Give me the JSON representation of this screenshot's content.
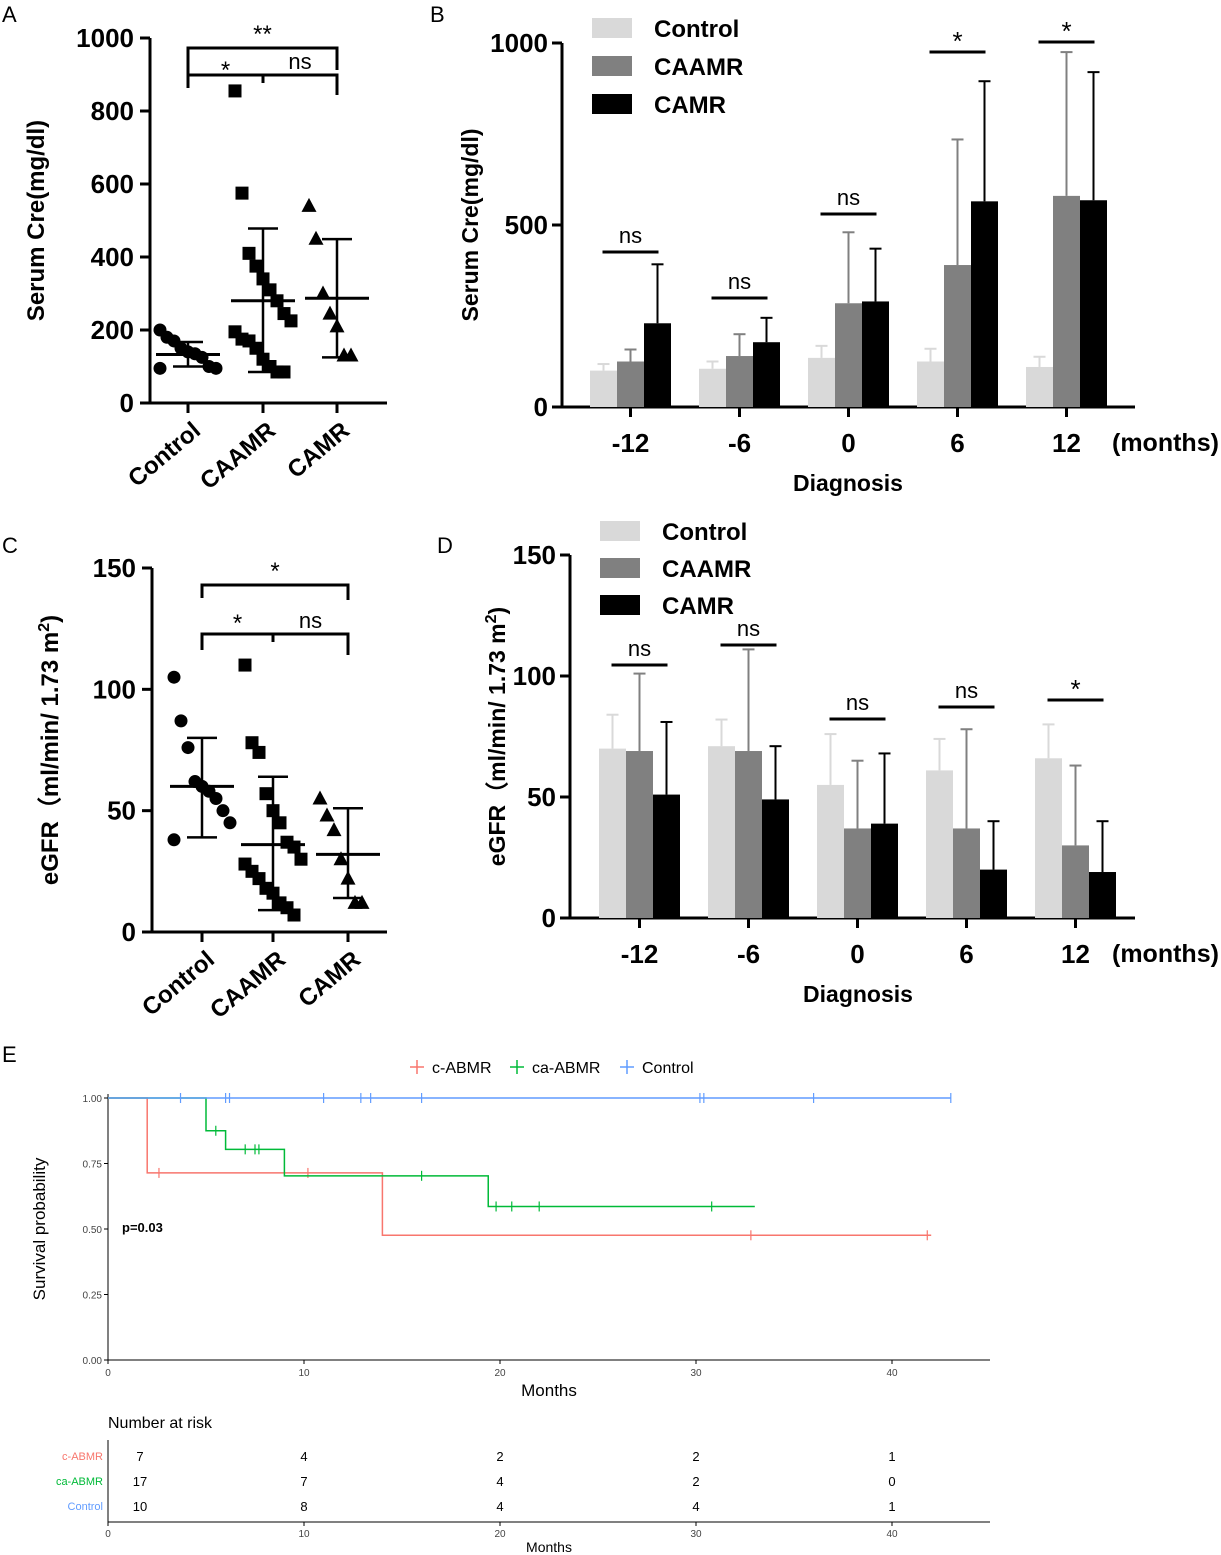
{
  "chart_data": [
    {
      "panel": "A",
      "type": "scatter",
      "title": "",
      "ylabel": "Serum Cre(mg/dl)",
      "ylim": [
        0,
        1000
      ],
      "yticks": [
        "0",
        "200",
        "400",
        "600",
        "800",
        "1000"
      ],
      "categories": [
        "Control",
        "CAAMR",
        "CAMR"
      ],
      "groups": [
        {
          "name": "Control",
          "marker": "circle",
          "points": [
            200,
            180,
            170,
            150,
            140,
            135,
            125,
            100,
            95,
            95
          ],
          "mean": 133,
          "sd": [
            100,
            167
          ]
        },
        {
          "name": "CAAMR",
          "marker": "square",
          "points": [
            855,
            575,
            410,
            375,
            340,
            310,
            280,
            245,
            225,
            195,
            175,
            170,
            150,
            120,
            100,
            85,
            85
          ],
          "mean": 280,
          "sd": [
            85,
            478
          ]
        },
        {
          "name": "CAMR",
          "marker": "triangle",
          "points": [
            540,
            450,
            300,
            245,
            210,
            130,
            130
          ],
          "mean": 287,
          "sd": [
            125,
            449
          ]
        }
      ],
      "significance": [
        {
          "label": "**",
          "between": [
            "Control",
            "CAMR"
          ]
        },
        {
          "label": "*",
          "between": [
            "Control",
            "CAAMR"
          ]
        },
        {
          "label": "ns",
          "between": [
            "CAAMR",
            "CAMR"
          ]
        }
      ]
    },
    {
      "panel": "B",
      "type": "bar",
      "ylabel": "Serum Cre(mg/dl)",
      "xlabel": "Diagnosis",
      "x_unit": "(months)",
      "ylim": [
        0,
        1000
      ],
      "yticks": [
        "0",
        "500",
        "1000"
      ],
      "categories": [
        "-12",
        "-6",
        "0",
        "6",
        "12"
      ],
      "series": [
        {
          "name": "Control",
          "color": "#d9d9d9",
          "values": [
            100,
            105,
            135,
            125,
            110
          ],
          "err": [
            118,
            125,
            168,
            160,
            138
          ]
        },
        {
          "name": "CAAMR",
          "color": "#808080",
          "values": [
            125,
            140,
            285,
            390,
            580
          ],
          "err": [
            158,
            200,
            480,
            735,
            975
          ]
        },
        {
          "name": "CAMR",
          "color": "#000000",
          "values": [
            230,
            178,
            290,
            565,
            568
          ],
          "err": [
            392,
            245,
            435,
            895,
            920
          ]
        }
      ],
      "significance": [
        "ns",
        "ns",
        "ns",
        "*",
        "*"
      ]
    },
    {
      "panel": "C",
      "type": "scatter",
      "ylabel": "eGFR（ml/min/ 1.73 m",
      "ylabel_sup": "2",
      "ylabel_close": ")",
      "ylim": [
        0,
        150
      ],
      "yticks": [
        "0",
        "50",
        "100",
        "150"
      ],
      "categories": [
        "Control",
        "CAAMR",
        "CAMR"
      ],
      "groups": [
        {
          "name": "Control",
          "marker": "circle",
          "points": [
            105,
            87,
            76,
            62,
            60,
            58,
            55,
            50,
            45,
            38
          ],
          "mean": 60,
          "sd": [
            39,
            80
          ]
        },
        {
          "name": "CAAMR",
          "marker": "square",
          "points": [
            110,
            78,
            74,
            57,
            50,
            45,
            37,
            35,
            30,
            28,
            25,
            22,
            18,
            16,
            12,
            10,
            7
          ],
          "mean": 36,
          "sd": [
            9,
            64
          ]
        },
        {
          "name": "CAMR",
          "marker": "triangle",
          "points": [
            55,
            48,
            42,
            30,
            22,
            12,
            12
          ],
          "mean": 32,
          "sd": [
            14,
            51
          ]
        }
      ],
      "significance": [
        {
          "label": "*",
          "between": [
            "Control",
            "CAMR"
          ]
        },
        {
          "label": "*",
          "between": [
            "Control",
            "CAAMR"
          ]
        },
        {
          "label": "ns",
          "between": [
            "CAAMR",
            "CAMR"
          ]
        }
      ]
    },
    {
      "panel": "D",
      "type": "bar",
      "ylabel": "eGFR（ml/min/ 1.73 m",
      "ylabel_sup": "2",
      "ylabel_close": ")",
      "xlabel": "Diagnosis",
      "x_unit": "(months)",
      "ylim": [
        0,
        150
      ],
      "yticks": [
        "0",
        "50",
        "100",
        "150"
      ],
      "categories": [
        "-12",
        "-6",
        "0",
        "6",
        "12"
      ],
      "series": [
        {
          "name": "Control",
          "color": "#d9d9d9",
          "values": [
            70,
            71,
            55,
            61,
            66
          ],
          "err": [
            84,
            82,
            76,
            74,
            80
          ]
        },
        {
          "name": "CAAMR",
          "color": "#808080",
          "values": [
            69,
            69,
            37,
            37,
            30
          ],
          "err": [
            101,
            111,
            65,
            78,
            63
          ]
        },
        {
          "name": "CAMR",
          "color": "#000000",
          "values": [
            51,
            49,
            39,
            20,
            19
          ],
          "err": [
            81,
            71,
            68,
            40,
            40
          ]
        }
      ],
      "significance": [
        "ns",
        "ns",
        "ns",
        "ns",
        "*"
      ]
    },
    {
      "panel": "E",
      "type": "line",
      "title": "",
      "xlabel": "Months",
      "ylabel": "Survival probability",
      "xlim": [
        0,
        45
      ],
      "ylim": [
        0,
        1
      ],
      "xticks": [
        "0",
        "10",
        "20",
        "30",
        "40"
      ],
      "yticks": [
        "0.00",
        "0.25",
        "0.50",
        "0.75",
        "1.00"
      ],
      "annotation": "p=0.03",
      "series": [
        {
          "name": "c-ABMR",
          "color": "#f8766d",
          "steps": [
            [
              0,
              1.0
            ],
            [
              2,
              0.714
            ],
            [
              14,
              0.476
            ],
            [
              42,
              0.476
            ]
          ],
          "censors": [
            [
              2.6,
              0.714
            ],
            [
              10.2,
              0.714
            ],
            [
              32.8,
              0.476
            ],
            [
              41.8,
              0.476
            ]
          ]
        },
        {
          "name": "ca-ABMR",
          "color": "#00ba38",
          "steps": [
            [
              0,
              1.0
            ],
            [
              5,
              0.875
            ],
            [
              6,
              0.804
            ],
            [
              9,
              0.703
            ],
            [
              19.4,
              0.586
            ],
            [
              33,
              0.586
            ]
          ],
          "censors": [
            [
              5.5,
              0.875
            ],
            [
              7,
              0.804
            ],
            [
              7.5,
              0.804
            ],
            [
              7.7,
              0.804
            ],
            [
              16,
              0.703
            ],
            [
              19.8,
              0.586
            ],
            [
              20.6,
              0.586
            ],
            [
              22,
              0.586
            ],
            [
              30.8,
              0.586
            ]
          ]
        },
        {
          "name": "Control",
          "color": "#619cff",
          "steps": [
            [
              0,
              1.0
            ],
            [
              43,
              1.0
            ]
          ],
          "censors": [
            [
              3.7,
              1.0
            ],
            [
              6,
              1.0
            ],
            [
              6.2,
              1.0
            ],
            [
              11,
              1.0
            ],
            [
              12.9,
              1.0
            ],
            [
              13.4,
              1.0
            ],
            [
              16,
              1.0
            ],
            [
              30.2,
              1.0
            ],
            [
              30.4,
              1.0
            ],
            [
              36,
              1.0
            ],
            [
              43,
              1.0
            ]
          ]
        }
      ],
      "risk_table": {
        "title": "Number at risk",
        "xlabel": "Months",
        "times": [
          "0",
          "10",
          "20",
          "30",
          "40"
        ],
        "rows": [
          {
            "name": "c-ABMR",
            "color": "#f8766d",
            "values": [
              "7",
              "4",
              "2",
              "2",
              "1"
            ]
          },
          {
            "name": "ca-ABMR",
            "color": "#00ba38",
            "values": [
              "17",
              "7",
              "4",
              "2",
              "0"
            ]
          },
          {
            "name": "Control",
            "color": "#619cff",
            "values": [
              "10",
              "8",
              "4",
              "4",
              "1"
            ]
          }
        ]
      }
    }
  ],
  "panel_labels": [
    "A",
    "B",
    "C",
    "D",
    "E"
  ]
}
